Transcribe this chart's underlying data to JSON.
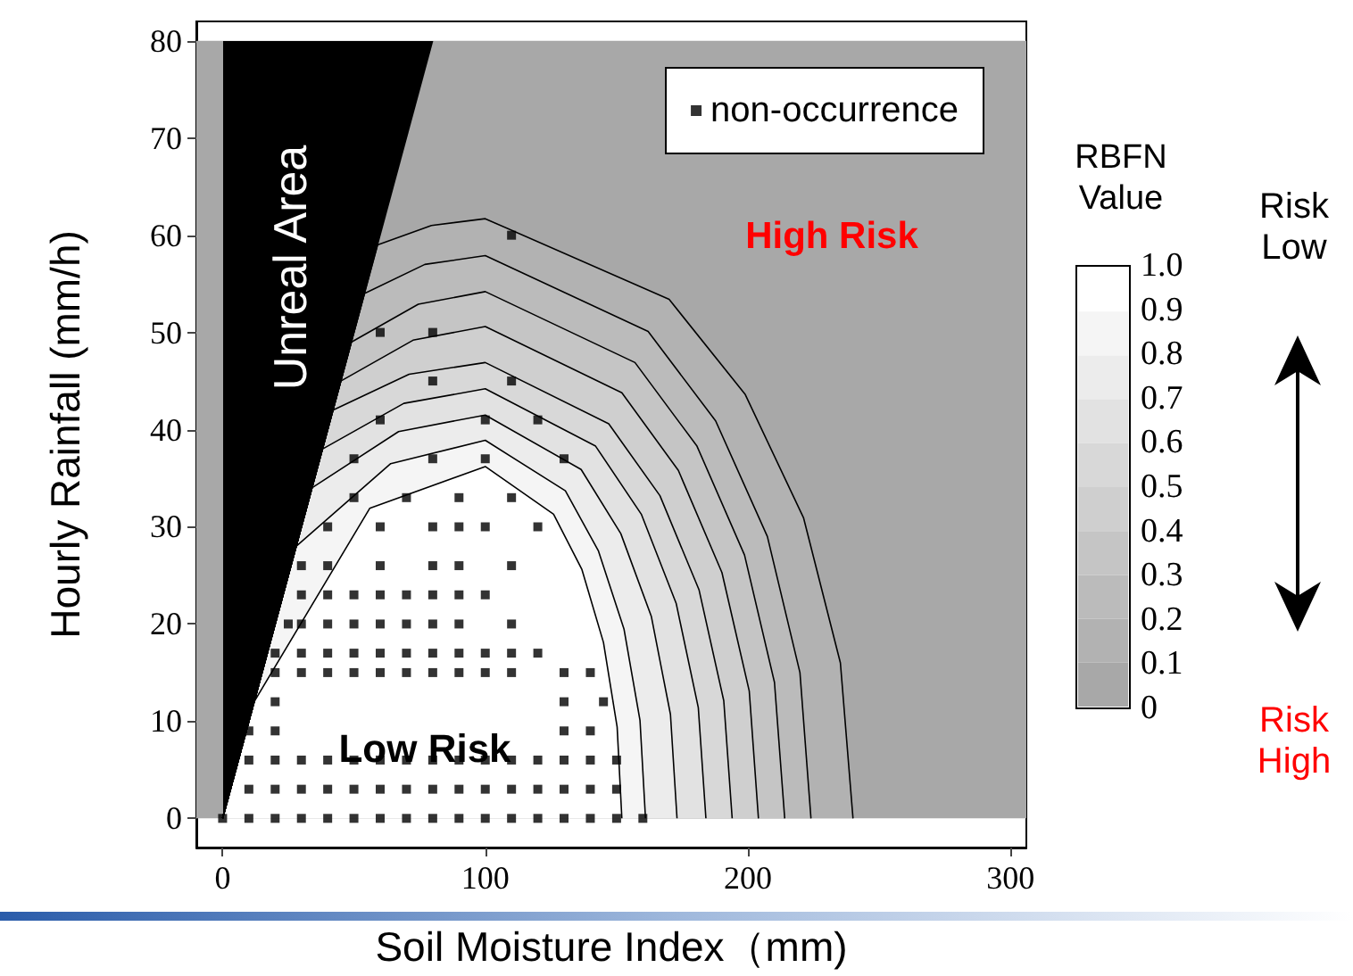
{
  "chart_data": {
    "type": "scatter",
    "xlabel": "Soil Moisture Index（mm)",
    "ylabel": "Hourly Rainfall (mm/h)",
    "clabel": "RBFN Value",
    "xlim": [
      -10,
      306
    ],
    "ylim": [
      -3,
      82
    ],
    "xticks": [
      0,
      100,
      200,
      300
    ],
    "yticks": [
      0,
      10,
      20,
      30,
      40,
      50,
      60,
      70,
      80
    ],
    "clim": [
      0,
      1
    ],
    "cticks": [
      0,
      {
        "value": 0.1,
        "label": "0.1"
      },
      {
        "value": 0.2,
        "label": "0.2"
      },
      {
        "value": 0.3,
        "label": "0.3"
      },
      {
        "value": 0.4,
        "label": "0.4"
      },
      {
        "value": 0.5,
        "label": "0.5"
      },
      {
        "value": 0.6,
        "label": "0.6"
      },
      {
        "value": 0.7,
        "label": "0.7"
      },
      {
        "value": 0.8,
        "label": "0.8"
      },
      {
        "value": 0.9,
        "label": "0.9"
      },
      {
        "value": 1,
        "label": "1.0"
      }
    ],
    "legend": "top right",
    "bands": [
      {
        "axis": "y",
        "from": 0,
        "to": 80,
        "color": "#a8a8a8"
      }
    ],
    "annotations": [
      "Unreal Area",
      "High Risk",
      "Low Risk",
      "Risk Low",
      "Risk High"
    ],
    "series": [
      {
        "type": "area",
        "color": "#b2b2b2",
        "x": [
          0,
          59,
          79.5,
          100,
          170,
          199,
          221.2,
          235.2,
          240
        ],
        "values": [
          0,
          59,
          61.0,
          61.7,
          53.4,
          43.6,
          30.9,
          16.0,
          0
        ]
      },
      {
        "type": "area",
        "color": "#bbbbbb",
        "x": [
          0,
          54,
          77,
          100,
          162,
          187.7,
          207.4,
          219.8,
          224
        ],
        "values": [
          0,
          54,
          57.0,
          57.9,
          50.1,
          40.9,
          29.0,
          15.0,
          0
        ]
      },
      {
        "type": "area",
        "color": "#c5c5c5",
        "x": [
          0,
          49,
          74.5,
          100,
          157,
          180.6,
          198.7,
          210.1,
          214
        ],
        "values": [
          0,
          49,
          52.9,
          54.2,
          46.9,
          38.3,
          27.1,
          14.0,
          0
        ]
      },
      {
        "type": "area",
        "color": "#cfcfcf",
        "x": [
          0,
          45,
          72.5,
          100,
          152,
          173.5,
          190.1,
          200.5,
          204
        ],
        "values": [
          0,
          45,
          49.2,
          50.6,
          43.8,
          35.8,
          25.3,
          13.1,
          0
        ]
      },
      {
        "type": "area",
        "color": "#d8d8d8",
        "x": [
          0,
          42,
          71,
          100,
          147,
          166.5,
          181.4,
          190.8,
          194
        ],
        "values": [
          0,
          42,
          45.7,
          46.9,
          40.6,
          33.2,
          23.5,
          12.1,
          0
        ]
      },
      {
        "type": "area",
        "color": "#e2e2e2",
        "x": [
          0,
          38,
          69,
          100,
          142,
          159.4,
          172.7,
          181.1,
          184
        ],
        "values": [
          0,
          38,
          42.7,
          44.2,
          38.3,
          31.3,
          22.1,
          11.4,
          0
        ]
      },
      {
        "type": "area",
        "color": "#ececec",
        "x": [
          0,
          34,
          67,
          100,
          136.5,
          151.6,
          163.2,
          170.5,
          173
        ],
        "values": [
          0,
          34,
          39.8,
          41.5,
          35.9,
          29.3,
          20.8,
          10.7,
          0
        ]
      },
      {
        "type": "area",
        "color": "#f5f5f5",
        "x": [
          0,
          28,
          64,
          100,
          130.5,
          143.1,
          152.8,
          158.9,
          161
        ],
        "values": [
          0,
          28,
          36.5,
          38.9,
          33.7,
          27.5,
          19.5,
          10.1,
          0
        ]
      },
      {
        "type": "area",
        "color": "#ffffff",
        "x": [
          0,
          12,
          56,
          100,
          126,
          136.8,
          145,
          150.2,
          152
        ],
        "values": [
          0,
          12,
          31.9,
          36.2,
          31.3,
          25.6,
          18.1,
          9.4,
          0
        ]
      },
      {
        "name": "non-occurrence",
        "color": "#000000",
        "marker": "square",
        "x": [
          0,
          10,
          20,
          30,
          40,
          50,
          60,
          70,
          80,
          90,
          100,
          110,
          120,
          130,
          140,
          150,
          160,
          10,
          20,
          30,
          40,
          50,
          60,
          70,
          80,
          90,
          100,
          110,
          120,
          130,
          140,
          150,
          10,
          20,
          30,
          40,
          50,
          60,
          70,
          80,
          90,
          100,
          110,
          120,
          130,
          140,
          150,
          10,
          20,
          130,
          140,
          20,
          130,
          145,
          20,
          30,
          40,
          50,
          60,
          70,
          80,
          90,
          100,
          110,
          130,
          140,
          20,
          30,
          40,
          50,
          60,
          70,
          80,
          90,
          100,
          110,
          120,
          25,
          30,
          40,
          50,
          60,
          70,
          80,
          90,
          110,
          30,
          40,
          50,
          60,
          70,
          80,
          90,
          100,
          30,
          40,
          60,
          80,
          90,
          110,
          40,
          60,
          80,
          90,
          100,
          120,
          50,
          70,
          90,
          110,
          50,
          80,
          100,
          130,
          60,
          100,
          120,
          80,
          110,
          60,
          80,
          110
        ],
        "values": [
          0,
          0,
          0,
          0,
          0,
          0,
          0,
          0,
          0,
          0,
          0,
          0,
          0,
          0,
          0,
          0,
          0,
          3,
          3,
          3,
          3,
          3,
          3,
          3,
          3,
          3,
          3,
          3,
          3,
          3,
          3,
          3,
          6,
          6,
          6,
          6,
          6,
          6,
          6,
          6,
          6,
          6,
          6,
          6,
          6,
          6,
          6,
          9,
          9,
          9,
          9,
          12,
          12,
          12,
          15,
          15,
          15,
          15,
          15,
          15,
          15,
          15,
          15,
          15,
          15,
          15,
          17,
          17,
          17,
          17,
          17,
          17,
          17,
          17,
          17,
          17,
          17,
          20,
          20,
          20,
          20,
          20,
          20,
          20,
          20,
          20,
          23,
          23,
          23,
          23,
          23,
          23,
          23,
          23,
          26,
          26,
          26,
          26,
          26,
          26,
          30,
          30,
          30,
          30,
          30,
          30,
          33,
          33,
          33,
          33,
          37,
          37,
          37,
          37,
          41,
          41,
          41,
          45,
          45,
          50,
          50,
          60
        ]
      }
    ]
  }
}
